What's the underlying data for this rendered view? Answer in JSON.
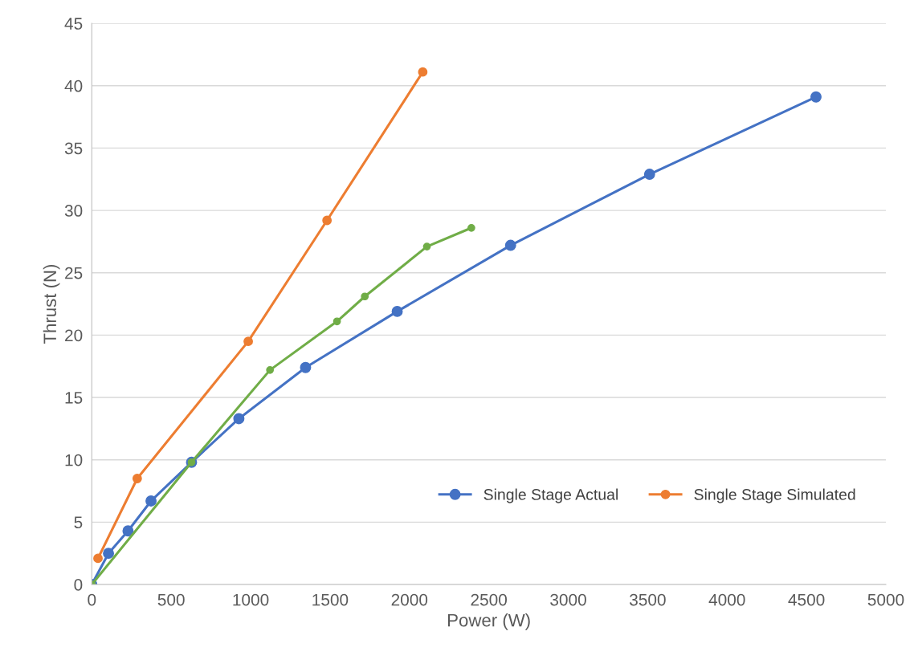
{
  "chart_data": {
    "type": "line",
    "xlabel": "Power (W)",
    "ylabel": "Thrust (N)",
    "xlim": [
      0,
      5000
    ],
    "xticks": [
      0,
      500,
      1000,
      1500,
      2000,
      2500,
      3000,
      3500,
      4000,
      4500,
      5000
    ],
    "ylim": [
      0,
      45
    ],
    "yticks": [
      0,
      5,
      10,
      15,
      20,
      25,
      30,
      35,
      40,
      45
    ],
    "grid": "y",
    "legend": "lower right",
    "marker": "circle",
    "line_style": "solid",
    "series": [
      {
        "name": "Single Stage Actual",
        "color": "#4472c4",
        "x": [
          0,
          105,
          228,
          373,
          628,
          926,
          1346,
          1923,
          2637,
          3512,
          4560
        ],
        "values": [
          0,
          2.5,
          4.3,
          6.7,
          9.8,
          13.3,
          17.4,
          21.9,
          27.2,
          32.9,
          39.1
        ]
      },
      {
        "name": "Single Stage Simulated",
        "color": "#ed7d31",
        "x": [
          39,
          286,
          985,
          1481,
          2084
        ],
        "values": [
          2.1,
          8.5,
          19.5,
          29.2,
          41.1
        ]
      },
      {
        "color": "#70ad47",
        "x": [
          0,
          628,
          1122,
          1544,
          1719,
          2110,
          2390
        ],
        "values": [
          0,
          9.8,
          17.2,
          21.1,
          23.1,
          27.1,
          28.6
        ]
      }
    ]
  }
}
